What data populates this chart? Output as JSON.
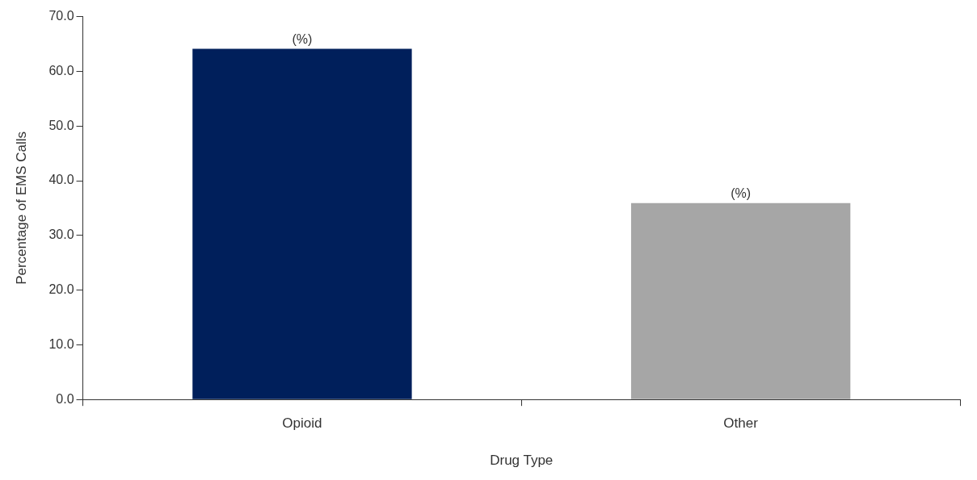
{
  "chart_data": {
    "type": "bar",
    "xlabel": "Drug Type",
    "ylabel": "Percentage of EMS Calls",
    "categories": [
      "Opioid",
      "Other"
    ],
    "values": [
      64.1,
      35.9
    ],
    "colors": [
      "#001f5b",
      "#a6a6a6"
    ],
    "ylim": [
      0,
      70
    ],
    "yticks": [
      {
        "value": 0,
        "label": "0.0"
      },
      {
        "value": 10,
        "label": "10.0"
      },
      {
        "value": 20,
        "label": "20.0"
      },
      {
        "value": 30,
        "label": "30.0"
      },
      {
        "value": 40,
        "label": "40.0"
      },
      {
        "value": 50,
        "label": "50.0"
      },
      {
        "value": 60,
        "label": "60.0"
      },
      {
        "value": 70,
        "label": "70.0"
      }
    ],
    "annotations": [
      {
        "text": "(%)",
        "x": "Opioid",
        "y": 64.1
      },
      {
        "text": "(%)",
        "x": "Other",
        "y": 35.9
      }
    ],
    "grid": false,
    "legend": false
  }
}
